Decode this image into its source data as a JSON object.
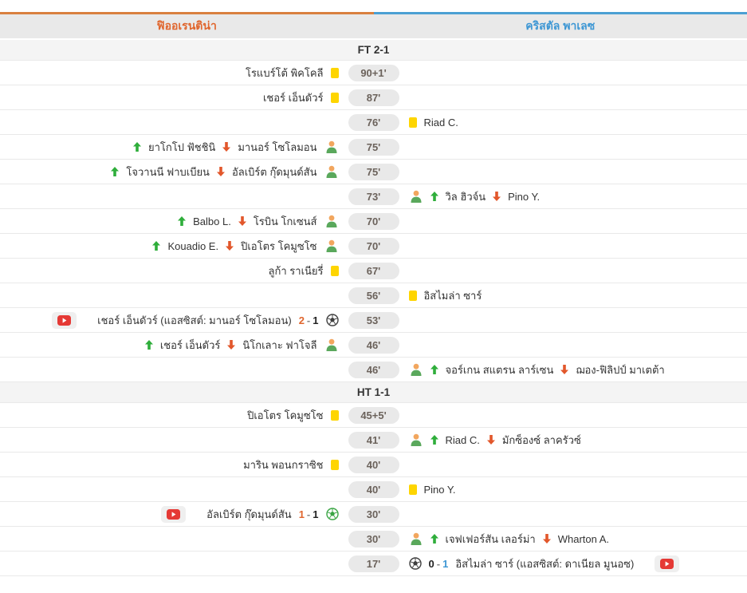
{
  "header": {
    "home_team": "ฟิออเรนติน่า",
    "away_team": "คริสตัล พาเลซ"
  },
  "colors": {
    "home": "#e0662e",
    "away": "#3e97d4",
    "home_bar": "#d9803f",
    "away_bar": "#4ba0d3",
    "yellow_card": "#fed501",
    "sub_in_arrow": "#2fae3b",
    "sub_out_arrow": "#e2572b",
    "goal_ball_green": "#3aa544",
    "goal_ball_dark": "#3f3f3f",
    "minute_pill_bg": "#e9e9e9",
    "minute_text": "#6b625b",
    "video_red": "#e53935"
  },
  "icons": {
    "yellow-card-icon": "yellow rounded rectangle",
    "substitution-icon": "player torso, tan head + green body",
    "sub-in-arrow-icon": "green up arrow",
    "sub-out-arrow-icon": "red-orange down arrow",
    "football-icon": "soccer ball glyph",
    "video-play-icon": "red play button on gray chip"
  },
  "rows": [
    {
      "type": "section",
      "label": "FT 2-1"
    },
    {
      "type": "yellow",
      "side": "home",
      "minute": "90+1'",
      "player": "โรแบร์โต้ พิคโคลี"
    },
    {
      "type": "yellow",
      "side": "home",
      "minute": "87'",
      "player": "เชอร์ เอ็นดัวร์"
    },
    {
      "type": "yellow",
      "side": "away",
      "minute": "76'",
      "player": "Riad C."
    },
    {
      "type": "sub",
      "side": "home",
      "minute": "75'",
      "player_in": "ยาโกโป ฟัชชินิ",
      "player_out": "มานอร์ โซโลมอน"
    },
    {
      "type": "sub",
      "side": "home",
      "minute": "75'",
      "player_in": "โจวานนี ฟาบเบียน",
      "player_out": "อัลเบิร์ต กุ๊ดมุนด์สัน"
    },
    {
      "type": "sub",
      "side": "away",
      "minute": "73'",
      "player_in": "วิล ฮิวจ์น",
      "player_out": "Pino Y."
    },
    {
      "type": "sub",
      "side": "home",
      "minute": "70'",
      "player_in": "Balbo L.",
      "player_out": "โรบิน โกเซนส์"
    },
    {
      "type": "sub",
      "side": "home",
      "minute": "70'",
      "player_in": "Kouadio E.",
      "player_out": "ปิเอโตร โคมูซโซ"
    },
    {
      "type": "yellow",
      "side": "home",
      "minute": "67'",
      "player": "ลูก้า ราเนียรี่"
    },
    {
      "type": "yellow",
      "side": "away",
      "minute": "56'",
      "player": "อิสไมล่า ซาร์"
    },
    {
      "type": "goal",
      "side": "home",
      "minute": "53'",
      "text": "เชอร์ เอ็นดัวร์ (แอสซิสต์: มานอร์ โซโลมอน)",
      "score_home": "2",
      "score_away": "1",
      "highlight": "home",
      "ball": "dark",
      "video": true
    },
    {
      "type": "sub",
      "side": "home",
      "minute": "46'",
      "player_in": "เชอร์ เอ็นดัวร์",
      "player_out": "นิโกเลาะ ฟาโจลี"
    },
    {
      "type": "sub",
      "side": "away",
      "minute": "46'",
      "player_in": "จอร์เกน สแตรน ลาร์เซน",
      "player_out": "ฌอง-ฟิลิปป์ มาเตต้า"
    },
    {
      "type": "section",
      "label": "HT 1-1"
    },
    {
      "type": "yellow",
      "side": "home",
      "minute": "45+5'",
      "player": "ปิเอโตร โคมูซโซ"
    },
    {
      "type": "sub",
      "side": "away",
      "minute": "41'",
      "player_in": "Riad C.",
      "player_out": "มักซ็องซ์ ลาครัวซ์"
    },
    {
      "type": "yellow",
      "side": "home",
      "minute": "40'",
      "player": "มาริน พอนกราซิช"
    },
    {
      "type": "yellow",
      "side": "away",
      "minute": "40'",
      "player": "Pino Y."
    },
    {
      "type": "goal",
      "side": "home",
      "minute": "30'",
      "text": "อัลเบิร์ต กุ๊ดมุนด์สัน",
      "score_home": "1",
      "score_away": "1",
      "highlight": "home",
      "ball": "green",
      "video": true
    },
    {
      "type": "sub",
      "side": "away",
      "minute": "30'",
      "player_in": "เจฟเฟอร์สัน เลอร์ม่า",
      "player_out": "Wharton A."
    },
    {
      "type": "goal",
      "side": "away",
      "minute": "17'",
      "text": "อิสไมล่า ซาร์ (แอสซิสต์: ดาเนียล มูนอซ)",
      "score_home": "0",
      "score_away": "1",
      "highlight": "away",
      "ball": "dark",
      "video": true
    }
  ]
}
